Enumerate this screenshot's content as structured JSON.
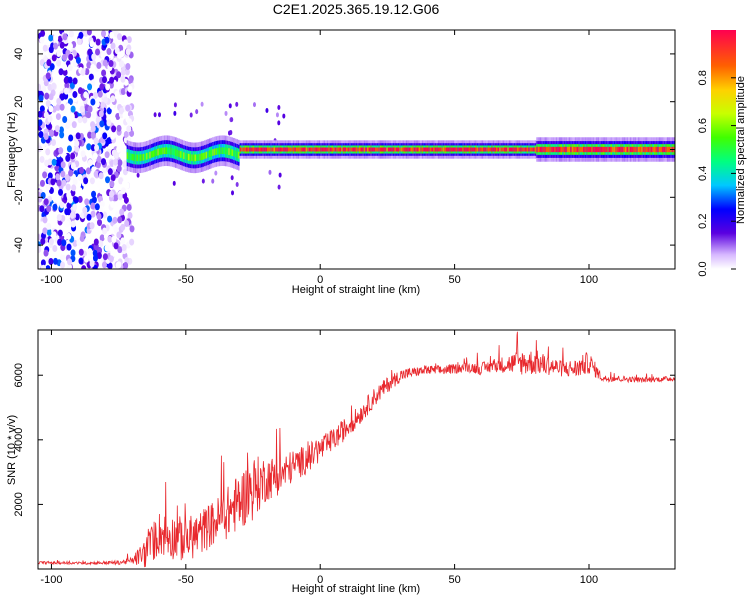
{
  "title": "C2E1.2025.365.19.12.G06",
  "chart_data": [
    {
      "type": "heatmap",
      "title": "",
      "xlabel": "Height of straight line (km)",
      "ylabel": "Frequency (Hz)",
      "xlim": [
        -105,
        132
      ],
      "ylim": [
        -50,
        50
      ],
      "xticks": [
        -100,
        -50,
        0,
        50,
        100
      ],
      "yticks": [
        -40,
        -20,
        0,
        20,
        40
      ],
      "colorbar": {
        "label": "Normalized spectral amplitude",
        "range": [
          0,
          1
        ],
        "ticks": [
          0.0,
          0.2,
          0.4,
          0.6,
          0.8
        ]
      },
      "regions": [
        {
          "name": "noise",
          "x": [
            -105,
            -70
          ],
          "freq": [
            -50,
            50
          ],
          "amplitude": 0.15
        },
        {
          "name": "transition",
          "x": [
            -72,
            -30
          ],
          "freq_center": -2,
          "freq_halfwidth": 4,
          "amplitude": 0.5
        },
        {
          "name": "signal",
          "x": [
            -30,
            132
          ],
          "freq_center": 0,
          "freq_halfwidth": 2,
          "amplitude": 0.95
        }
      ]
    },
    {
      "type": "line",
      "title": "",
      "xlabel": "Height of straight line (km)",
      "ylabel": "SNR (10 * v/v)",
      "xlim": [
        -105,
        132
      ],
      "ylim": [
        0,
        7400
      ],
      "xticks": [
        -100,
        -50,
        0,
        50,
        100
      ],
      "yticks": [
        2000,
        4000,
        6000
      ],
      "color": "#e8282d",
      "series": [
        {
          "name": "SNR",
          "x": [
            -105,
            -90,
            -75,
            -70,
            -65,
            -60,
            -55,
            -50,
            -45,
            -40,
            -35,
            -30,
            -25,
            -20,
            -15,
            -10,
            -5,
            0,
            5,
            10,
            15,
            20,
            25,
            30,
            35,
            40,
            45,
            50,
            55,
            60,
            65,
            70,
            75,
            80,
            85,
            90,
            95,
            100,
            105,
            110,
            120,
            132
          ],
          "y": [
            200,
            180,
            200,
            260,
            500,
            1100,
            1000,
            900,
            1100,
            1400,
            1700,
            2100,
            2500,
            2800,
            2900,
            3200,
            3400,
            3700,
            4000,
            4400,
            4800,
            5300,
            5700,
            6000,
            6100,
            6150,
            6150,
            6200,
            6250,
            6200,
            6300,
            6350,
            6400,
            6400,
            6300,
            6200,
            6200,
            6400,
            5900,
            5900,
            5850,
            5900
          ],
          "noise": [
            40,
            40,
            60,
            100,
            500,
            700,
            700,
            700,
            700,
            700,
            800,
            900,
            1000,
            700,
            600,
            500,
            450,
            400,
            350,
            350,
            300,
            300,
            250,
            200,
            150,
            150,
            150,
            150,
            150,
            200,
            200,
            300,
            400,
            400,
            300,
            250,
            300,
            350,
            100,
            100,
            80,
            80
          ]
        }
      ]
    }
  ]
}
